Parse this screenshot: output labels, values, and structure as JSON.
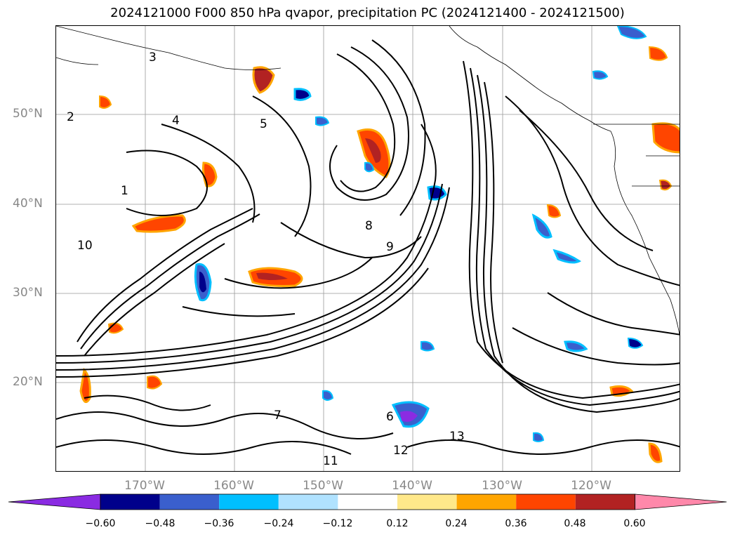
{
  "title": "2024121000 F000 850 hPa qvapor, precipitation PC (2024121400 - 2024121500)",
  "map": {
    "lat_labels": [
      "50°N",
      "40°N",
      "30°N",
      "20°N"
    ],
    "lon_labels": [
      "170°W",
      "160°W",
      "150°W",
      "140°W",
      "130°W",
      "120°W"
    ],
    "contour_labels": [
      "3",
      "4",
      "2",
      "5",
      "1",
      "10",
      "8",
      "9",
      "6",
      "7",
      "11",
      "12",
      "13"
    ],
    "coastline": "North America west coast"
  },
  "colorbar": {
    "ticks": [
      "−0.60",
      "−0.48",
      "−0.36",
      "−0.24",
      "−0.12",
      "0.12",
      "0.24",
      "0.36",
      "0.48",
      "0.60"
    ],
    "colors": [
      "#8a2be2",
      "#00008b",
      "#3a5fcd",
      "#00bfff",
      "#b0e2ff",
      "#ffffff",
      "#ffe88a",
      "#ffa500",
      "#ff4500",
      "#b22222",
      "#ff88aa"
    ],
    "extend": "both"
  }
}
